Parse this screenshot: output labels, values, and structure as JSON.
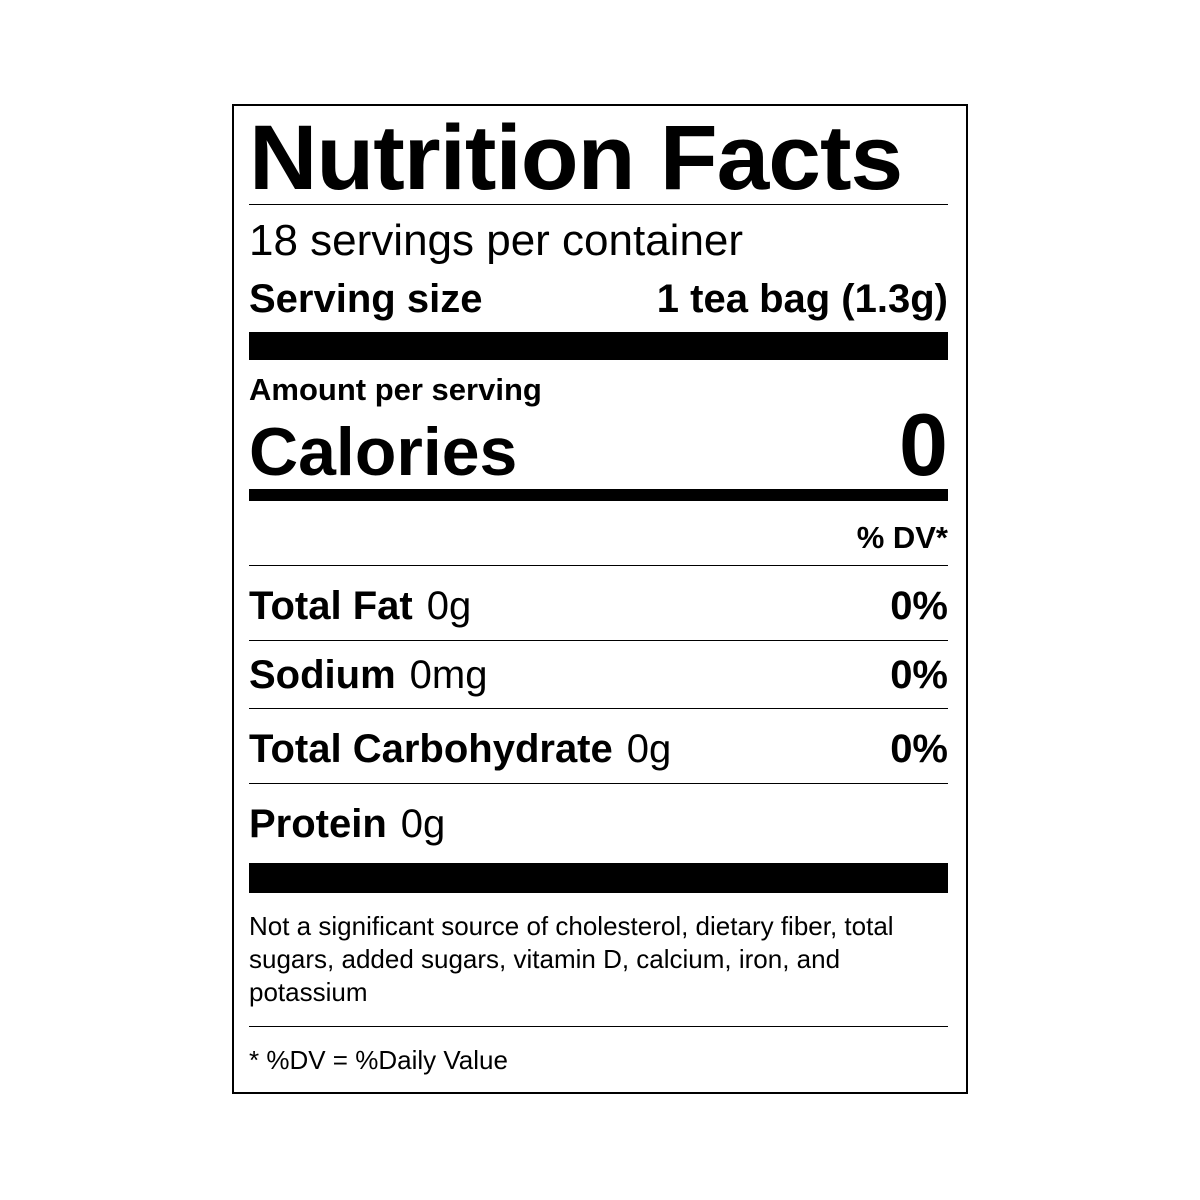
{
  "title": "Nutrition Facts",
  "servings_per_container": "18 servings per container",
  "serving_size": {
    "label": "Serving size",
    "value": "1 tea bag (1.3g)"
  },
  "amount_per_serving": "Amount per serving",
  "calories": {
    "label": "Calories",
    "value": "0"
  },
  "dv_header": "% DV*",
  "nutrients": [
    {
      "name": "Total Fat",
      "amount": "0g",
      "dv": "0%"
    },
    {
      "name": "Sodium",
      "amount": "0mg",
      "dv": "0%"
    },
    {
      "name": "Total Carbohydrate",
      "amount": "0g",
      "dv": "0%"
    },
    {
      "name": "Protein",
      "amount": "0g",
      "dv": ""
    }
  ],
  "footnote": "Not a significant source of cholesterol, dietary fiber, total sugars, added sugars, vitamin D, calcium, iron, and potassium",
  "dv_key": "* %DV = %Daily Value"
}
